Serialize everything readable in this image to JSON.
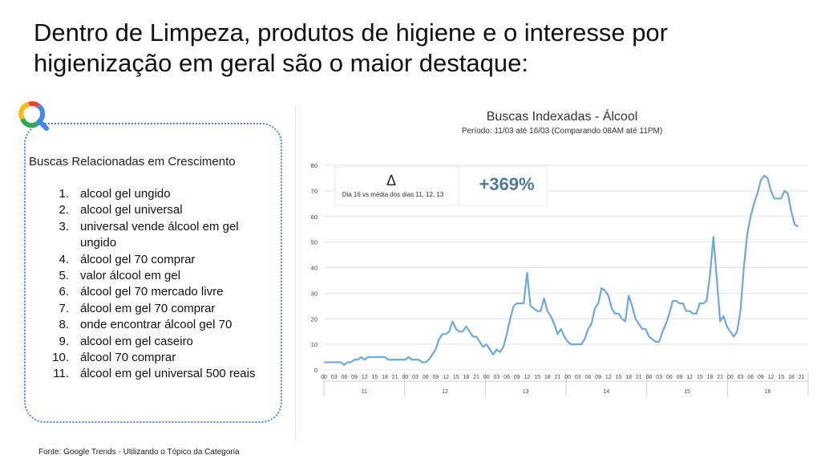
{
  "slide": {
    "title": "Dentro de Limpeza, produtos de higiene e o interesse por higienização em geral são o maior destaque:",
    "source": "Fonte: Google Trends - Utilizando o Tópico da Categoria",
    "icon": "google-search-icon"
  },
  "related": {
    "heading": "Buscas Relacionadas em Crescimento",
    "items": [
      {
        "num": "1.",
        "text": "alcool gel ungido"
      },
      {
        "num": "2.",
        "text": "alcool gel universal"
      },
      {
        "num": "3.",
        "text": "universal vende álcool em gel ungido"
      },
      {
        "num": "4.",
        "text": "álcool gel 70 comprar"
      },
      {
        "num": "5.",
        "text": "valor álcool em gel"
      },
      {
        "num": "6.",
        "text": "álcool gel 70 mercado livre"
      },
      {
        "num": "7.",
        "text": "álcool em gel 70 comprar"
      },
      {
        "num": "8.",
        "text": "onde encontrar álcool gel 70"
      },
      {
        "num": "9.",
        "text": "alcool em gel caseiro"
      },
      {
        "num": "10.",
        "text": "álcool 70 comprar"
      },
      {
        "num": "11.",
        "text": "álcool em gel universal 500 reais"
      }
    ]
  },
  "chart_data": {
    "type": "line",
    "title": "Buscas Indexadas - Álcool",
    "subtitle": "Período: 11/03 até 16/03 (Comparando 08AM até 11PM)",
    "ylim": [
      0,
      80
    ],
    "yticks": [
      0,
      10,
      20,
      30,
      40,
      50,
      60,
      70,
      80
    ],
    "hour_ticks": [
      "00",
      "03",
      "06",
      "09",
      "12",
      "15",
      "18",
      "21"
    ],
    "days": [
      "11",
      "12",
      "13",
      "14",
      "15",
      "16"
    ],
    "grid": true,
    "line_color": "#6fa8dc",
    "annotation": {
      "symbol": "Δ",
      "note": "Dia 16 vs média dos dias 11, 12, 13",
      "value": "+369%",
      "value_color": "#4f7a99"
    },
    "series": [
      {
        "values": [
          3,
          3,
          3,
          3,
          3,
          3,
          2,
          3,
          3,
          4,
          4,
          5,
          4,
          5,
          5,
          5,
          5,
          5,
          5,
          4,
          4,
          4,
          4,
          4,
          4,
          5,
          4,
          4,
          4,
          3,
          3,
          4,
          6,
          8,
          12,
          14,
          14,
          15,
          19,
          16,
          15,
          15,
          17,
          15,
          13,
          13,
          11,
          9,
          10,
          8,
          6,
          8,
          7,
          9,
          14,
          20,
          25,
          26,
          26,
          26,
          38,
          25,
          24,
          23,
          23,
          28,
          23,
          21,
          18,
          14,
          16,
          13,
          11,
          10,
          10,
          10,
          10,
          12,
          16,
          18,
          24,
          26,
          32,
          31,
          29,
          24,
          22,
          22,
          20,
          19,
          29,
          25,
          20,
          18,
          16,
          16,
          13,
          12,
          11,
          11,
          15,
          18,
          22,
          27,
          27,
          26,
          26,
          23,
          23,
          22,
          22,
          26,
          26,
          27,
          37,
          52,
          36,
          19,
          21,
          17,
          15,
          13,
          15,
          23,
          40,
          53,
          60,
          65,
          69,
          74,
          76,
          75,
          70,
          67,
          67,
          67,
          70,
          69,
          62,
          57,
          56
        ]
      }
    ]
  }
}
